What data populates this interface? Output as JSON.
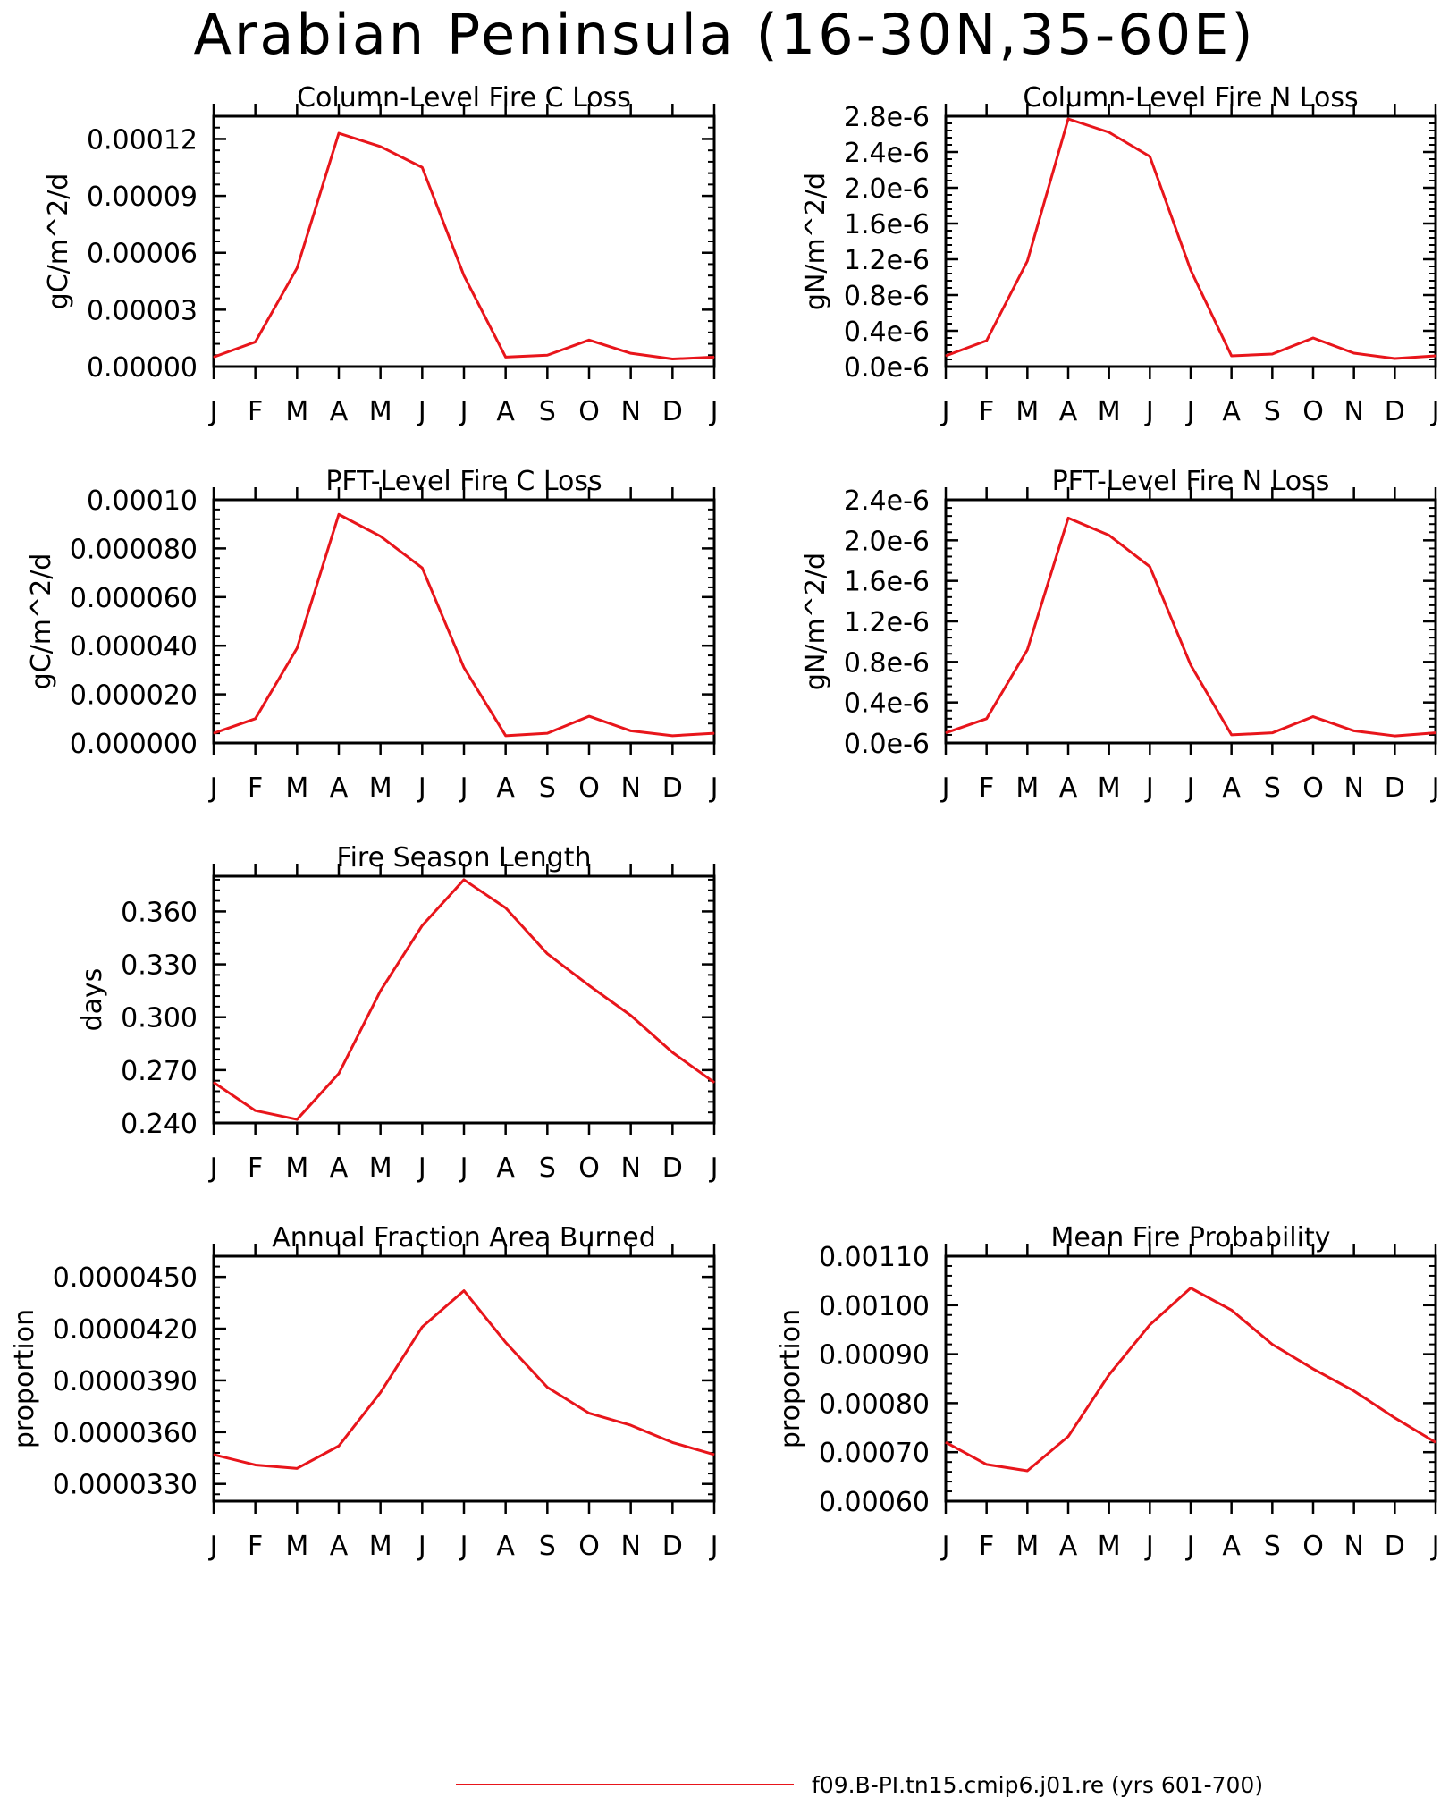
{
  "title": "Arabian Peninsula (16-30N,35-60E)",
  "line_color": "#e8151b",
  "legend_label": "f09.B-PI.tn15.cmip6.j01.re (yrs 601-700)",
  "chart_data": [
    {
      "type": "line",
      "title": "Column-Level Fire C Loss",
      "ylabel": "gC/m^2/d",
      "xlabel": "",
      "categories": [
        "J",
        "F",
        "M",
        "A",
        "M",
        "J",
        "J",
        "A",
        "S",
        "O",
        "N",
        "D",
        "J"
      ],
      "ylim": [
        0,
        0.000132
      ],
      "yticks": [
        "0.00000",
        "0.00003",
        "0.00006",
        "0.00009",
        "0.00012"
      ],
      "ytick_values": [
        0,
        3e-05,
        6e-05,
        9e-05,
        0.00012
      ],
      "series": [
        {
          "values": [
            5e-06,
            1.3e-05,
            5.2e-05,
            0.000123,
            0.000116,
            0.000105,
            4.8e-05,
            5e-06,
            6e-06,
            1.4e-05,
            7e-06,
            4e-06,
            5e-06
          ]
        }
      ],
      "grid": false
    },
    {
      "type": "line",
      "title": "Column-Level Fire N Loss",
      "ylabel": "gN/m^2/d",
      "xlabel": "",
      "categories": [
        "J",
        "F",
        "M",
        "A",
        "M",
        "J",
        "J",
        "A",
        "S",
        "O",
        "N",
        "D",
        "J"
      ],
      "ylim": [
        0,
        2.8e-06
      ],
      "yticks": [
        "0.0e-6",
        "0.4e-6",
        "0.8e-6",
        "1.2e-6",
        "1.6e-6",
        "2.0e-6",
        "2.4e-6",
        "2.8e-6"
      ],
      "ytick_values": [
        0,
        4e-07,
        8e-07,
        1.2e-06,
        1.6e-06,
        2e-06,
        2.4e-06,
        2.8e-06
      ],
      "series": [
        {
          "values": [
            1.2e-07,
            2.9e-07,
            1.18e-06,
            2.77e-06,
            2.62e-06,
            2.35e-06,
            1.08e-06,
            1.2e-07,
            1.4e-07,
            3.2e-07,
            1.5e-07,
            9e-08,
            1.2e-07
          ]
        }
      ],
      "grid": false
    },
    {
      "type": "line",
      "title": "PFT-Level Fire C Loss",
      "ylabel": "gC/m^2/d",
      "xlabel": "",
      "categories": [
        "J",
        "F",
        "M",
        "A",
        "M",
        "J",
        "J",
        "A",
        "S",
        "O",
        "N",
        "D",
        "J"
      ],
      "ylim": [
        0,
        0.0001
      ],
      "yticks": [
        "0.000000",
        "0.000020",
        "0.000040",
        "0.000060",
        "0.000080",
        "0.00010"
      ],
      "ytick_values": [
        0,
        2e-05,
        4e-05,
        6e-05,
        8e-05,
        0.0001
      ],
      "series": [
        {
          "values": [
            4e-06,
            1e-05,
            3.9e-05,
            9.4e-05,
            8.5e-05,
            7.2e-05,
            3.1e-05,
            3e-06,
            4e-06,
            1.1e-05,
            5e-06,
            3e-06,
            4e-06
          ]
        }
      ],
      "grid": false
    },
    {
      "type": "line",
      "title": "PFT-Level Fire N Loss",
      "ylabel": "gN/m^2/d",
      "xlabel": "",
      "categories": [
        "J",
        "F",
        "M",
        "A",
        "M",
        "J",
        "J",
        "A",
        "S",
        "O",
        "N",
        "D",
        "J"
      ],
      "ylim": [
        0,
        2.4e-06
      ],
      "yticks": [
        "0.0e-6",
        "0.4e-6",
        "0.8e-6",
        "1.2e-6",
        "1.6e-6",
        "2.0e-6",
        "2.4e-6"
      ],
      "ytick_values": [
        0,
        4e-07,
        8e-07,
        1.2e-06,
        1.6e-06,
        2e-06,
        2.4e-06
      ],
      "series": [
        {
          "values": [
            1e-07,
            2.4e-07,
            9.2e-07,
            2.22e-06,
            2.05e-06,
            1.74e-06,
            7.7e-07,
            8e-08,
            1e-07,
            2.6e-07,
            1.2e-07,
            7e-08,
            1e-07
          ]
        }
      ],
      "grid": false
    },
    {
      "type": "line",
      "title": "Fire Season Length",
      "ylabel": "days",
      "xlabel": "",
      "categories": [
        "J",
        "F",
        "M",
        "A",
        "M",
        "J",
        "J",
        "A",
        "S",
        "O",
        "N",
        "D",
        "J"
      ],
      "ylim": [
        0.24,
        0.38
      ],
      "yticks": [
        "0.240",
        "0.270",
        "0.300",
        "0.330",
        "0.360"
      ],
      "ytick_values": [
        0.24,
        0.27,
        0.3,
        0.33,
        0.36
      ],
      "series": [
        {
          "values": [
            0.263,
            0.247,
            0.242,
            0.268,
            0.315,
            0.352,
            0.378,
            0.362,
            0.336,
            0.318,
            0.301,
            0.28,
            0.263
          ]
        }
      ],
      "grid": false
    },
    {
      "type": "line",
      "title": "Annual Fraction Area Burned",
      "ylabel": "proportion",
      "xlabel": "",
      "categories": [
        "J",
        "F",
        "M",
        "A",
        "M",
        "J",
        "J",
        "A",
        "S",
        "O",
        "N",
        "D",
        "J"
      ],
      "ylim": [
        3.2e-05,
        4.62e-05
      ],
      "yticks": [
        "0.0000330",
        "0.0000360",
        "0.0000390",
        "0.0000420",
        "0.0000450"
      ],
      "ytick_values": [
        3.3e-05,
        3.6e-05,
        3.9e-05,
        4.2e-05,
        4.5e-05
      ],
      "series": [
        {
          "values": [
            3.47e-05,
            3.41e-05,
            3.39e-05,
            3.52e-05,
            3.83e-05,
            4.21e-05,
            4.42e-05,
            4.12e-05,
            3.86e-05,
            3.71e-05,
            3.64e-05,
            3.54e-05,
            3.47e-05
          ]
        }
      ],
      "grid": false
    },
    {
      "type": "line",
      "title": "Mean Fire Probability",
      "ylabel": "proportion",
      "xlabel": "",
      "categories": [
        "J",
        "F",
        "M",
        "A",
        "M",
        "J",
        "J",
        "A",
        "S",
        "O",
        "N",
        "D",
        "J"
      ],
      "ylim": [
        0.0006,
        0.0011
      ],
      "yticks": [
        "0.00060",
        "0.00070",
        "0.00080",
        "0.00090",
        "0.00100",
        "0.00110"
      ],
      "ytick_values": [
        0.0006,
        0.0007,
        0.0008,
        0.0009,
        0.001,
        0.0011
      ],
      "series": [
        {
          "values": [
            0.00072,
            0.000675,
            0.000662,
            0.000732,
            0.000858,
            0.00096,
            0.001035,
            0.00099,
            0.00092,
            0.00087,
            0.000825,
            0.00077,
            0.00072
          ]
        }
      ],
      "grid": false
    }
  ]
}
